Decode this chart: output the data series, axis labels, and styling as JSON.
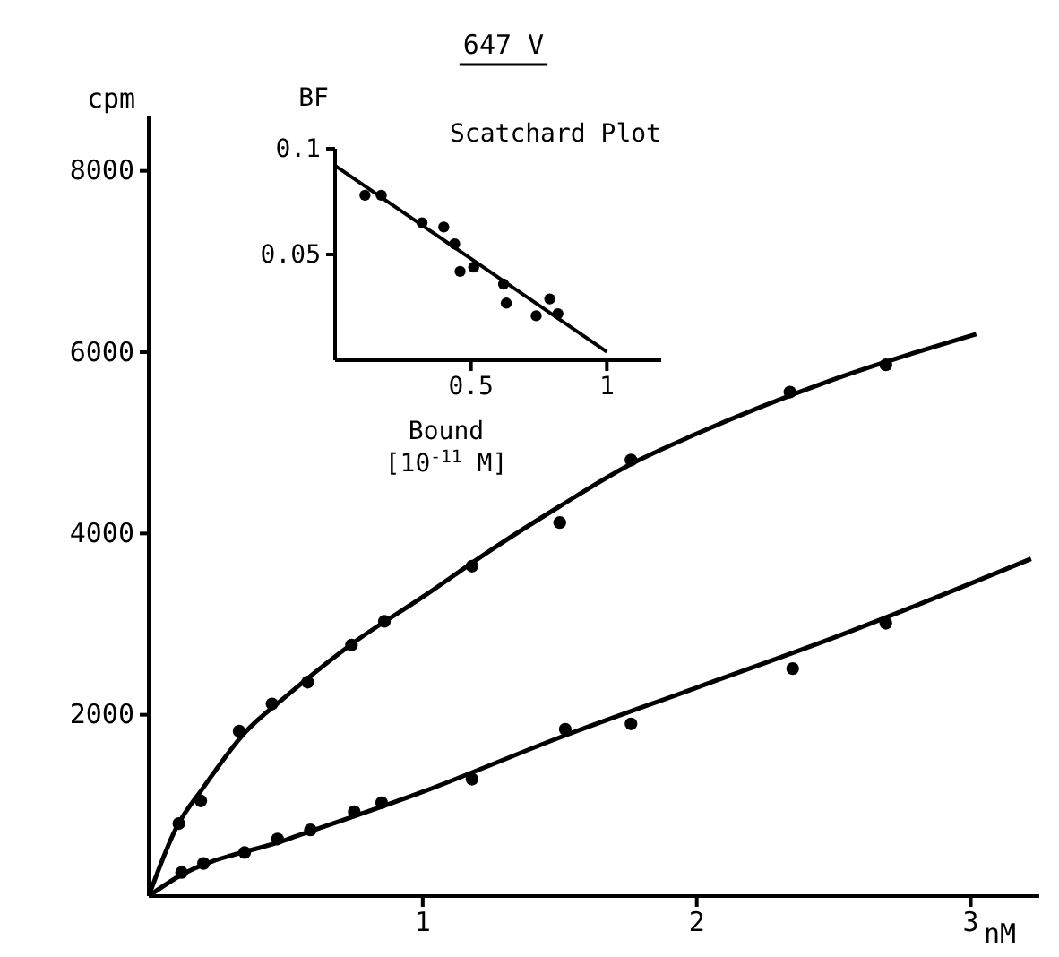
{
  "chart_data": [
    {
      "type": "scatter",
      "title": "647 V",
      "xlabel": "nM",
      "ylabel": "cpm",
      "xlim": [
        0,
        3.25
      ],
      "ylim": [
        0,
        8600
      ],
      "xticks": [
        1,
        2,
        3
      ],
      "yticks": [
        2000,
        4000,
        6000,
        8000
      ],
      "grid": false,
      "marker": "circle",
      "line_style": "solid",
      "series": [
        {
          "color": "#000000",
          "x": [
            0.11,
            0.19,
            0.33,
            0.45,
            0.58,
            0.74,
            0.86,
            1.18,
            1.5,
            1.76,
            2.34,
            2.69
          ],
          "values": [
            800,
            1050,
            1820,
            2120,
            2360,
            2770,
            3030,
            3640,
            4120,
            4810,
            5560,
            5860
          ]
        },
        {
          "color": "#000000",
          "x": [
            0.12,
            0.2,
            0.35,
            0.47,
            0.59,
            0.75,
            0.85,
            1.18,
            1.52,
            1.76,
            2.35,
            2.69
          ],
          "values": [
            260,
            360,
            480,
            630,
            730,
            930,
            1030,
            1290,
            1840,
            1900,
            2510,
            3010
          ]
        },
        {
          "type": "line",
          "marker": "none",
          "color": "#000000",
          "x": [
            0,
            0.1,
            0.2,
            0.35,
            0.5,
            0.75,
            1.0,
            1.25,
            1.5,
            1.75,
            2.0,
            2.5,
            3.02
          ],
          "values": [
            0,
            750,
            1200,
            1800,
            2200,
            2800,
            3300,
            3820,
            4300,
            4750,
            5100,
            5700,
            6200
          ]
        },
        {
          "type": "line",
          "marker": "none",
          "color": "#000000",
          "x": [
            0,
            0.1,
            0.5,
            1.0,
            1.5,
            2.0,
            2.5,
            3.22
          ],
          "values": [
            0,
            200,
            620,
            1150,
            1750,
            2300,
            2850,
            3720
          ]
        }
      ]
    },
    {
      "type": "scatter",
      "title": "Scatchard Plot",
      "xlabel": "Bound [10$^{-11}$ M]",
      "ylabel": "BF",
      "xlim": [
        0,
        1.2
      ],
      "ylim": [
        0,
        0.1
      ],
      "xticks": [
        0.5,
        1
      ],
      "yticks": [
        0.05,
        0.1
      ],
      "grid": false,
      "marker": "circle",
      "line_style": "solid",
      "series": [
        {
          "color": "#000000",
          "x": [
            0.11,
            0.17,
            0.32,
            0.4,
            0.44,
            0.46,
            0.51,
            0.62,
            0.63,
            0.74,
            0.79,
            0.82
          ],
          "values": [
            0.078,
            0.078,
            0.065,
            0.063,
            0.055,
            0.042,
            0.044,
            0.036,
            0.027,
            0.021,
            0.029,
            0.022
          ]
        },
        {
          "type": "line",
          "marker": "none",
          "color": "#000000",
          "x": [
            0,
            1.0
          ],
          "values": [
            0.092,
            0.004
          ]
        }
      ]
    }
  ]
}
